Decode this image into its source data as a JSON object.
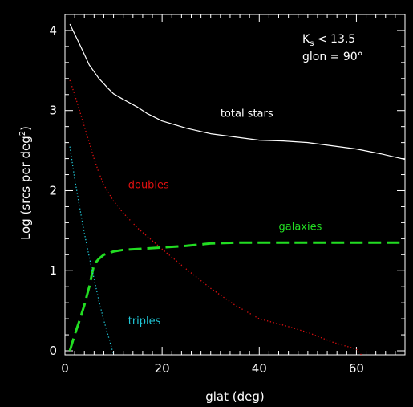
{
  "chart_data": {
    "type": "line",
    "xlabel": "glat (deg)",
    "ylabel": "Log (srcs per deg²)",
    "xlim": [
      0,
      70
    ],
    "ylim": [
      -0.05,
      4.2
    ],
    "x_ticks": [
      0,
      20,
      40,
      60
    ],
    "y_ticks": [
      0,
      1,
      2,
      3,
      4
    ],
    "annotation": {
      "line1": "K",
      "sub": "s",
      "line1_rest": " < 13.5",
      "line2": "glon = 90°"
    },
    "series": [
      {
        "name": "total stars",
        "color": "#ffffff",
        "style": "solid",
        "x": [
          1,
          3,
          5,
          7,
          9,
          10,
          12,
          15,
          17,
          20,
          25,
          30,
          35,
          40,
          45,
          50,
          55,
          60,
          65,
          70
        ],
        "y": [
          4.08,
          3.83,
          3.57,
          3.4,
          3.27,
          3.21,
          3.14,
          3.04,
          2.96,
          2.87,
          2.78,
          2.71,
          2.67,
          2.63,
          2.62,
          2.6,
          2.56,
          2.52,
          2.46,
          2.39
        ]
      },
      {
        "name": "doubles",
        "color": "#e01010",
        "style": "dotted",
        "x": [
          1,
          2,
          3,
          4,
          5,
          6,
          7,
          8,
          9,
          10,
          12,
          15,
          20,
          25,
          30,
          35,
          40,
          45,
          50,
          55,
          60,
          61
        ],
        "y": [
          3.38,
          3.2,
          3.0,
          2.8,
          2.6,
          2.4,
          2.22,
          2.07,
          1.97,
          1.87,
          1.72,
          1.53,
          1.27,
          1.02,
          0.78,
          0.57,
          0.4,
          0.32,
          0.23,
          0.11,
          0.02,
          -0.05
        ]
      },
      {
        "name": "galaxies",
        "color": "#22dd22",
        "style": "dashed",
        "x": [
          1,
          2,
          3,
          4,
          5,
          6,
          7,
          8,
          9,
          10,
          12,
          15,
          20,
          25,
          30,
          35,
          40,
          50,
          60,
          70
        ],
        "y": [
          0.0,
          0.2,
          0.38,
          0.57,
          0.8,
          1.08,
          1.15,
          1.2,
          1.22,
          1.24,
          1.26,
          1.27,
          1.29,
          1.31,
          1.34,
          1.35,
          1.35,
          1.35,
          1.35,
          1.35
        ]
      },
      {
        "name": "triples",
        "color": "#20c8d8",
        "style": "dotted",
        "x": [
          1,
          2,
          3,
          4,
          5,
          6,
          7,
          8,
          9,
          10
        ],
        "y": [
          2.55,
          2.15,
          1.8,
          1.47,
          1.17,
          0.9,
          0.62,
          0.38,
          0.17,
          -0.05
        ]
      }
    ],
    "labels": [
      {
        "text": "total stars",
        "color": "#ffffff",
        "x": 32,
        "y": 2.92
      },
      {
        "text": "doubles",
        "color": "#e01010",
        "x": 13,
        "y": 2.03
      },
      {
        "text": "galaxies",
        "color": "#22dd22",
        "x": 44,
        "y": 1.51
      },
      {
        "text": "triples",
        "color": "#20c8d8",
        "x": 13,
        "y": 0.33
      }
    ]
  }
}
